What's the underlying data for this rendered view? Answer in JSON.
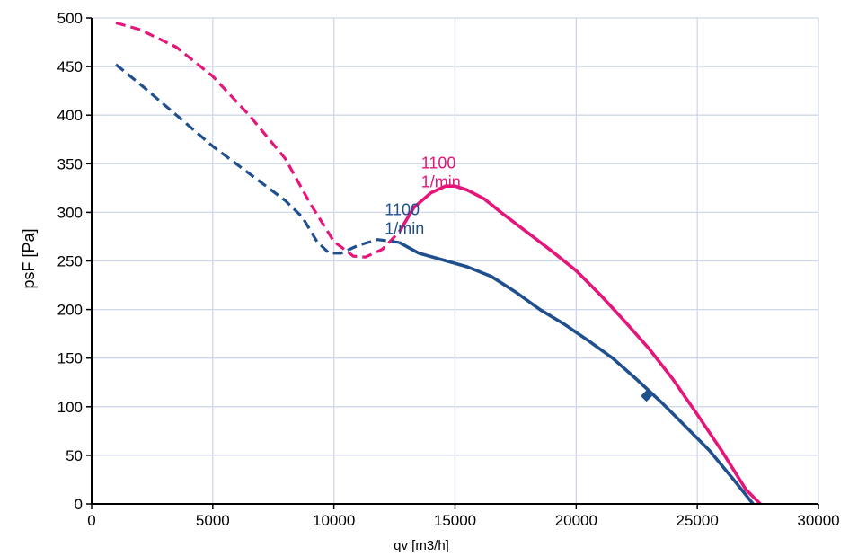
{
  "chart_data": {
    "type": "line",
    "title": "",
    "xlabel": "qv [m3/h]",
    "ylabel": "psF [Pa]",
    "xlim": [
      0,
      30000
    ],
    "ylim": [
      0,
      500
    ],
    "x_ticks": [
      "0",
      "5000",
      "10000",
      "15000",
      "20000",
      "25000",
      "30000"
    ],
    "y_ticks": [
      "0",
      "50",
      "100",
      "150",
      "200",
      "250",
      "300",
      "350",
      "400",
      "450",
      "500"
    ],
    "grid": true,
    "colors": {
      "grid": "#cfd8e8",
      "axis": "#000000"
    },
    "series": [
      {
        "color": "#e5157a",
        "label_lines": [
          "1100",
          "1/min"
        ],
        "label_at": [
          13600,
          345
        ],
        "dashed": [
          [
            1000,
            495
          ],
          [
            2000,
            488
          ],
          [
            3500,
            470
          ],
          [
            5000,
            440
          ],
          [
            6500,
            400
          ],
          [
            8000,
            355
          ],
          [
            9000,
            310
          ],
          [
            10000,
            270
          ],
          [
            10800,
            255
          ],
          [
            11300,
            254
          ],
          [
            12000,
            262
          ],
          [
            12700,
            280
          ]
        ],
        "solid": [
          [
            12700,
            280
          ],
          [
            13300,
            305
          ],
          [
            14000,
            320
          ],
          [
            14600,
            327
          ],
          [
            15000,
            327
          ],
          [
            15500,
            323
          ],
          [
            16200,
            314
          ],
          [
            17000,
            298
          ],
          [
            18000,
            279
          ],
          [
            19000,
            260
          ],
          [
            20000,
            240
          ],
          [
            21000,
            215
          ],
          [
            22000,
            188
          ],
          [
            23000,
            160
          ],
          [
            24000,
            128
          ],
          [
            25000,
            92
          ],
          [
            26000,
            55
          ],
          [
            27000,
            15
          ],
          [
            27600,
            0
          ]
        ]
      },
      {
        "color": "#1f4f8c",
        "label_lines": [
          "1100",
          "1/min"
        ],
        "label_at": [
          12100,
          297
        ],
        "dashed": [
          [
            1000,
            452
          ],
          [
            2000,
            432
          ],
          [
            3500,
            400
          ],
          [
            5000,
            368
          ],
          [
            6500,
            340
          ],
          [
            8000,
            312
          ],
          [
            8700,
            295
          ],
          [
            9300,
            270
          ],
          [
            9800,
            258
          ],
          [
            10300,
            258
          ],
          [
            11000,
            266
          ],
          [
            11800,
            272
          ],
          [
            12700,
            269
          ]
        ],
        "solid": [
          [
            12700,
            269
          ],
          [
            13500,
            258
          ],
          [
            14500,
            251
          ],
          [
            15500,
            244
          ],
          [
            16500,
            234
          ],
          [
            17500,
            218
          ],
          [
            18500,
            200
          ],
          [
            19500,
            185
          ],
          [
            20500,
            168
          ],
          [
            21500,
            150
          ],
          [
            22500,
            128
          ],
          [
            23500,
            105
          ],
          [
            24500,
            80
          ],
          [
            25500,
            55
          ],
          [
            26500,
            25
          ],
          [
            27300,
            0
          ]
        ],
        "marker": [
          22900,
          111
        ]
      }
    ]
  }
}
